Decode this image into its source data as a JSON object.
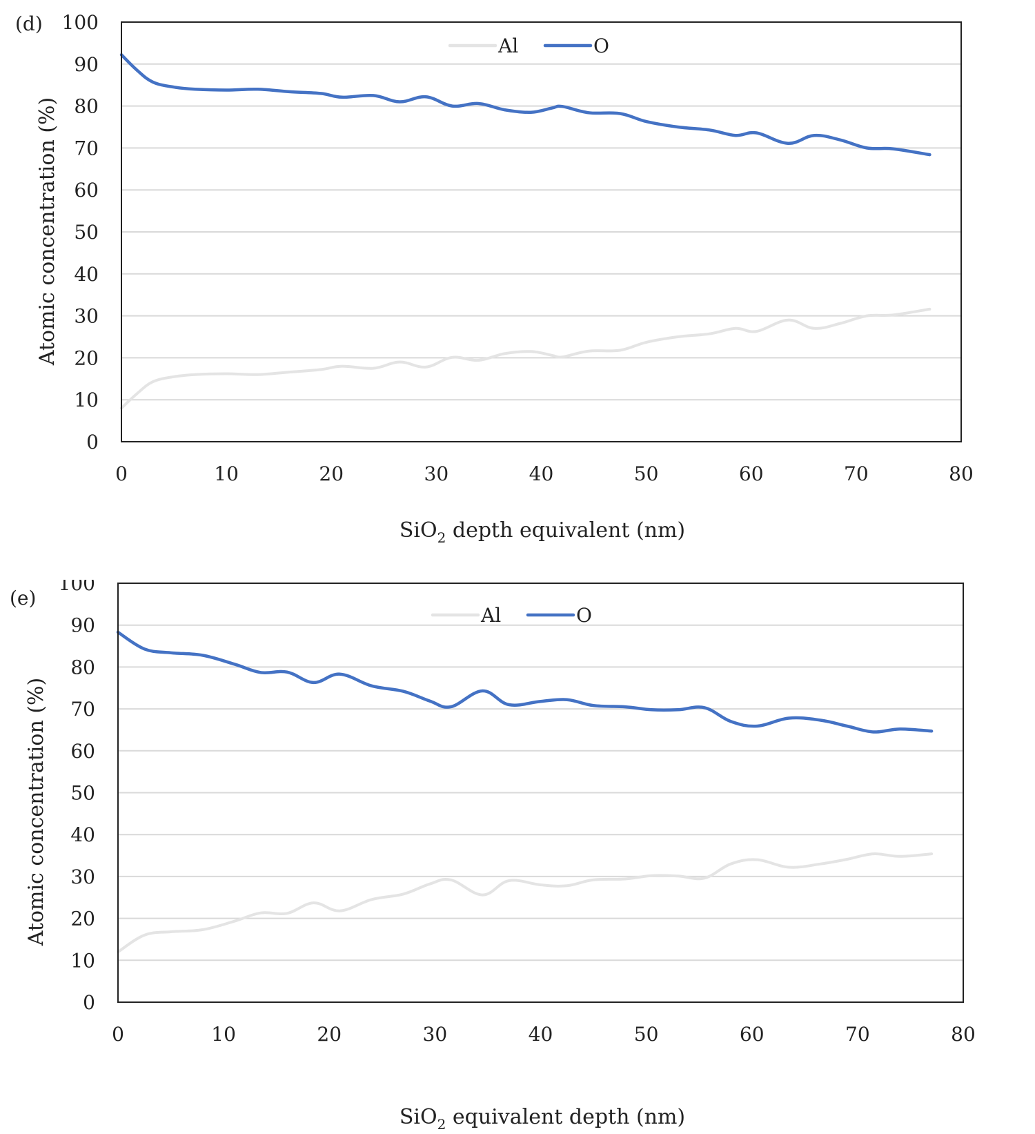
{
  "colors": {
    "al": "#e4e4e4",
    "o": "#4472c4",
    "grid": "#d9d9d9",
    "frame": "#222222"
  },
  "chart_data": [
    {
      "type": "line",
      "panel_label": "(d)",
      "ylabel": "Atomic concentration (%)",
      "xlabel_parts": [
        "SiO",
        "2",
        " depth equivalent (nm)"
      ],
      "xlim": [
        0,
        80
      ],
      "ylim": [
        0,
        100
      ],
      "xticks": [
        0,
        10,
        20,
        30,
        40,
        50,
        60,
        70,
        80
      ],
      "yticks": [
        0,
        10,
        20,
        30,
        40,
        50,
        60,
        70,
        80,
        90,
        100
      ],
      "legend": {
        "position": "top-center",
        "entries": [
          "Al",
          "O"
        ]
      },
      "gridlines": "horizontal",
      "series": [
        {
          "name": "Al",
          "color_key": "al",
          "x": [
            0,
            1.5,
            3,
            5,
            7,
            10,
            13,
            16,
            19,
            21,
            24,
            26.5,
            29,
            31.5,
            34,
            36.5,
            39,
            41,
            42,
            44.5,
            47.5,
            50,
            53,
            56,
            58.5,
            60.5,
            63.5,
            66,
            68.5,
            71,
            73.5,
            77
          ],
          "values": [
            8,
            11.5,
            14.3,
            15.5,
            16,
            16.2,
            16,
            16.6,
            17.2,
            18,
            17.5,
            19,
            17.8,
            20.1,
            19.4,
            21,
            21.5,
            20.6,
            20.2,
            21.6,
            21.8,
            23.7,
            25,
            25.7,
            27,
            26.3,
            29,
            27,
            28.2,
            30,
            30.2,
            31.6
          ]
        },
        {
          "name": "O",
          "color_key": "o",
          "x": [
            0,
            1.5,
            3,
            5,
            7,
            10,
            13,
            16,
            19,
            21,
            24,
            26.5,
            29,
            31.5,
            34,
            36.5,
            39,
            41,
            42,
            44.5,
            47.5,
            50,
            53,
            56,
            58.5,
            60.5,
            63.5,
            66,
            68.5,
            71,
            73.5,
            77
          ],
          "values": [
            92.2,
            88.5,
            85.7,
            84.5,
            84,
            83.8,
            84,
            83.4,
            83,
            82.1,
            82.5,
            81,
            82.2,
            80,
            80.6,
            79.1,
            78.5,
            79.5,
            79.9,
            78.4,
            78.2,
            76.3,
            75,
            74.3,
            73,
            73.6,
            71.1,
            73,
            71.9,
            70,
            69.8,
            68.4
          ]
        }
      ]
    },
    {
      "type": "line",
      "panel_label": "(e)",
      "ylabel": "Atomic concentration (%)",
      "xlabel_parts": [
        "SiO",
        "2",
        " equivalent depth (nm)"
      ],
      "xlim": [
        0,
        80
      ],
      "ylim": [
        0,
        100
      ],
      "xticks": [
        0,
        10,
        20,
        30,
        40,
        50,
        60,
        70,
        80
      ],
      "yticks": [
        0,
        10,
        20,
        30,
        40,
        50,
        60,
        70,
        80,
        90,
        100
      ],
      "legend": {
        "position": "top-center",
        "entries": [
          "Al",
          "O"
        ]
      },
      "gridlines": "horizontal",
      "series": [
        {
          "name": "Al",
          "color_key": "al",
          "x": [
            0,
            2.5,
            5,
            8,
            11,
            13.5,
            16,
            18.5,
            21,
            24,
            27,
            29.5,
            31.5,
            34.5,
            37,
            40,
            42.5,
            45,
            48,
            50.5,
            53,
            55.5,
            58,
            60.5,
            63.5,
            66.5,
            69,
            71.5,
            74,
            77
          ],
          "values": [
            12,
            16,
            16.8,
            17.3,
            19.3,
            21.3,
            21.2,
            23.7,
            21.8,
            24.5,
            25.8,
            28.2,
            29.2,
            25.6,
            29,
            28,
            27.8,
            29.2,
            29.4,
            30.2,
            30.1,
            29.6,
            33,
            34,
            32.2,
            33,
            34.1,
            35.4,
            34.8,
            35.4
          ]
        },
        {
          "name": "O",
          "color_key": "o",
          "x": [
            0,
            2.5,
            5,
            8,
            11,
            13.5,
            16,
            18.5,
            21,
            24,
            27,
            29.5,
            31.5,
            34.5,
            37,
            40,
            42.5,
            45,
            48,
            50.5,
            53,
            55.5,
            58,
            60.5,
            63.5,
            66.5,
            69,
            71.5,
            74,
            77
          ],
          "values": [
            88.3,
            84.3,
            83.4,
            82.8,
            80.7,
            78.7,
            78.8,
            76.3,
            78.3,
            75.5,
            74.2,
            71.9,
            70.5,
            74.3,
            71,
            71.8,
            72.2,
            70.8,
            70.5,
            69.8,
            69.8,
            70.3,
            67,
            65.9,
            67.8,
            67.3,
            65.9,
            64.5,
            65.2,
            64.7
          ]
        }
      ]
    }
  ]
}
